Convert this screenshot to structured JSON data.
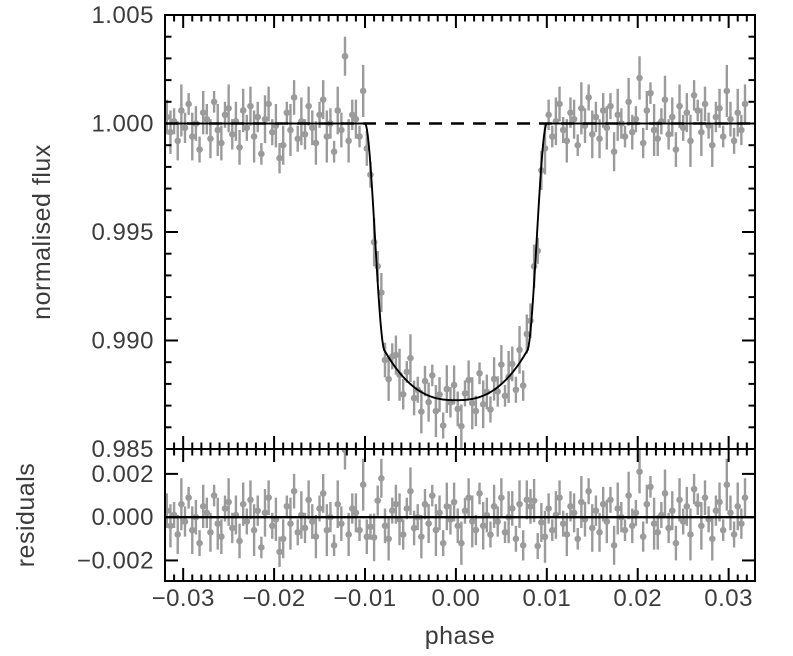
{
  "chart_data": {
    "type": "scatter",
    "title": "",
    "xlabel": "phase",
    "xlim": [
      -0.032,
      0.0329
    ],
    "xticks": {
      "values": [
        -0.03,
        -0.02,
        -0.01,
        0.0,
        0.01,
        0.02,
        0.03
      ],
      "labels": [
        "−0.03",
        "−0.02",
        "−0.01",
        "0.00",
        "0.01",
        "0.02",
        "0.03"
      ]
    },
    "x_minor_step": 0.001,
    "panels": [
      {
        "name": "light_curve",
        "ylabel": "normalised flux",
        "ylim": [
          0.985,
          1.005
        ],
        "yticks": {
          "values": [
            0.985,
            0.99,
            0.995,
            1.0,
            1.005
          ],
          "labels": [
            "0.985",
            "0.990",
            "0.995",
            "1.000",
            "1.005"
          ]
        },
        "y_minor_step": 0.001,
        "baseline": {
          "value": 1.0,
          "style": "dashed"
        }
      },
      {
        "name": "residuals",
        "ylabel": "residuals",
        "ylim": [
          -0.00295,
          0.00315
        ],
        "yticks": {
          "values": [
            -0.002,
            0.0,
            0.002
          ],
          "labels": [
            "−0.002",
            "0.000",
            "0.002"
          ]
        },
        "y_minor_step": null,
        "zero_line": {
          "value": 0.0,
          "style": "solid"
        }
      }
    ],
    "model": {
      "baseline": 1.0,
      "t_flat": 0.0078,
      "t_egress": 0.01,
      "flux_contact": 0.9895,
      "flux_min": 0.98725,
      "bottom_exponent": 2.5,
      "transit_depth": 0.01275,
      "transit_center_phase": 0.0
    },
    "points": {
      "phase_start": -0.0318,
      "phase_step": 0.0004,
      "flux": [
        1.0003,
        0.9996,
        1.0001,
        0.9992,
        1.0006,
        0.9998,
        1.0009,
        0.9994,
        1.0,
        0.9988,
        1.0005,
        1.0002,
        0.9993,
        1.001,
        0.9997,
        0.9991,
        1.0004,
        1.0007,
        0.9995,
        1.0001,
        0.9989,
        1.0006,
        0.9998,
        1.0008,
        0.9994,
        1.0003,
        0.9986,
        1.0002,
        1.0009,
        0.9996,
        0.9999,
        0.9984,
        0.999,
        1.0005,
        0.9997,
        1.0012,
        0.9993,
        1.0001,
        0.9995,
        1.0008,
        0.9998,
        0.9991,
        1.0004,
        1.0011,
        0.9994,
        1.0,
        0.9987,
        1.0006,
        0.9997,
        1.0031,
        0.9992,
        1.0004,
        1.0002,
        0.9994,
        1.0015,
        0.99885,
        0.99764,
        0.99453,
        0.99342,
        0.99221,
        0.9891,
        0.98822,
        0.98927,
        0.98933,
        0.98842,
        0.98752,
        0.98855,
        0.98919,
        0.98735,
        0.98773,
        0.98672,
        0.98813,
        0.98716,
        0.98839,
        0.98675,
        0.98751,
        0.98608,
        0.98776,
        0.98715,
        0.98795,
        0.98685,
        0.98605,
        0.98756,
        0.98818,
        0.98711,
        0.98675,
        0.98849,
        0.98706,
        0.98763,
        0.98682,
        0.98823,
        0.98765,
        0.98889,
        0.98745,
        0.98832,
        0.98892,
        0.98773,
        0.98957,
        0.98792,
        0.9903,
        0.99091,
        0.99342,
        0.99413,
        0.99784,
        0.99885,
        1.0004,
        0.9994,
        1.0001,
        1.0009,
        0.9997,
        0.9992,
        1.0005,
        1.0002,
        0.999,
        1.0007,
        0.9999,
        1.0012,
        0.9995,
        1.0003,
        0.9993,
        1.0006,
        0.9998,
        1.0008,
        0.9987,
        1.0004,
        1.0,
        0.9994,
        1.001,
        0.9996,
        1.0002,
        1.0021,
        0.9991,
        1.0006,
        1.0014,
        0.9997,
        0.9993,
        1.0001,
        1.0011,
        0.9995,
        1.0003,
        0.9988,
        1.0008,
        0.9998,
        1.0005,
        0.9992,
        1.0013,
        1.0006,
        0.9996,
        1.0009,
        0.9999,
        0.999,
        1.0003,
        1.0007,
        0.9994,
        1.0015,
        1.0002,
        0.9992,
        1.0005,
        0.9997,
        1.0009
      ],
      "err": [
        0.0008,
        0.001,
        0.0006,
        0.0009,
        0.0012,
        0.0007,
        0.0005,
        0.0011,
        0.0008,
        0.0006,
        0.001,
        0.0007,
        0.0009,
        0.0005,
        0.0012,
        0.0008,
        0.0006,
        0.0011,
        0.0007,
        0.0009,
        0.0008,
        0.001,
        0.0006,
        0.0009,
        0.0012,
        0.0007,
        0.0005,
        0.0011,
        0.0008,
        0.0006,
        0.001,
        0.0007,
        0.0009,
        0.0005,
        0.0012,
        0.0008,
        0.0006,
        0.0011,
        0.0007,
        0.0009,
        0.0008,
        0.001,
        0.0006,
        0.0009,
        0.0012,
        0.0007,
        0.0005,
        0.0011,
        0.0008,
        0.0009,
        0.001,
        0.0007,
        0.0009,
        0.0005,
        0.0012,
        0.0008,
        0.0006,
        0.0011,
        0.0007,
        0.0009,
        0.0008,
        0.001,
        0.0006,
        0.0009,
        0.0012,
        0.0007,
        0.0005,
        0.0011,
        0.0008,
        0.0006,
        0.001,
        0.0007,
        0.0009,
        0.0005,
        0.0012,
        0.0008,
        0.0006,
        0.0011,
        0.0007,
        0.0009,
        0.0008,
        0.001,
        0.0006,
        0.0009,
        0.0012,
        0.0007,
        0.0005,
        0.0011,
        0.0008,
        0.0006,
        0.001,
        0.0007,
        0.0009,
        0.0005,
        0.0012,
        0.0008,
        0.0006,
        0.0011,
        0.0007,
        0.0009,
        0.0008,
        0.001,
        0.0006,
        0.0009,
        0.0012,
        0.0007,
        0.0005,
        0.0011,
        0.0008,
        0.0006,
        0.001,
        0.0007,
        0.0009,
        0.0005,
        0.0012,
        0.0008,
        0.0006,
        0.0011,
        0.0007,
        0.0009,
        0.0008,
        0.001,
        0.0006,
        0.0009,
        0.0012,
        0.0007,
        0.0005,
        0.0011,
        0.0008,
        0.0006,
        0.001,
        0.0007,
        0.0009,
        0.0005,
        0.0012,
        0.0008,
        0.0006,
        0.0011,
        0.0007,
        0.0009,
        0.0008,
        0.001,
        0.0006,
        0.0009,
        0.0012,
        0.0007,
        0.0005,
        0.0011,
        0.0008,
        0.0006,
        0.001,
        0.0007,
        0.0009,
        0.0005,
        0.0012,
        0.0008,
        0.0006,
        0.0011,
        0.0007,
        0.0009
      ]
    },
    "colors": {
      "data_gray": "#9b9b9b",
      "model_black": "#000000",
      "frame_black": "#000000",
      "label_color": "#3c3c3c",
      "background": "#ffffff"
    },
    "legend": null,
    "grid": false
  }
}
